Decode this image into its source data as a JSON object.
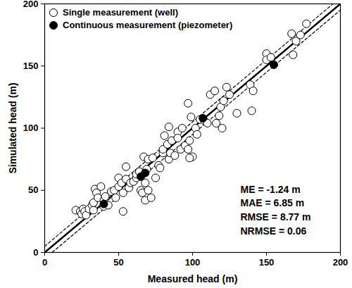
{
  "chart_data": {
    "type": "scatter",
    "xlabel": "Measured head (m)",
    "ylabel": "Simulated head (m)",
    "xlim": [
      0,
      200
    ],
    "ylim": [
      0,
      200
    ],
    "xticks": [
      0,
      50,
      100,
      150,
      200
    ],
    "yticks": [
      0,
      50,
      100,
      150,
      200
    ],
    "grid": false,
    "legend": "top-left",
    "series": [
      {
        "name": "Single measurement (well)",
        "color": "#000000",
        "marker": "open_circle",
        "x": [
          21,
          24,
          25,
          26,
          27,
          28,
          30,
          32,
          33,
          33,
          34,
          35,
          36,
          38,
          40,
          40,
          41,
          43,
          45,
          47,
          48,
          50,
          50,
          52,
          53,
          53,
          55,
          55,
          57,
          58,
          60,
          62,
          62,
          64,
          65,
          66,
          67,
          68,
          68,
          69,
          70,
          70,
          72,
          73,
          75,
          77,
          78,
          80,
          80,
          81,
          83,
          84,
          84,
          85,
          86,
          88,
          90,
          90,
          92,
          93,
          95,
          97,
          98,
          99,
          100,
          102,
          103,
          105,
          108,
          110,
          112,
          115,
          116,
          118,
          119,
          120,
          121,
          123,
          125,
          130,
          139,
          140,
          141,
          150,
          150,
          153,
          167,
          168,
          170,
          173,
          177,
          97,
          98
        ],
        "values": [
          34,
          33,
          31,
          35,
          33,
          30,
          35,
          38,
          34,
          40,
          51,
          48,
          44,
          53,
          42,
          37,
          45,
          38,
          49,
          50,
          44,
          53,
          60,
          56,
          48,
          33,
          59,
          69,
          52,
          56,
          57,
          60,
          63,
          65,
          50,
          48,
          77,
          42,
          56,
          67,
          75,
          50,
          44,
          76,
          60,
          70,
          68,
          80,
          83,
          94,
          87,
          75,
          101,
          80,
          90,
          78,
          97,
          92,
          83,
          100,
          86,
          83,
          90,
          109,
          77,
          100,
          95,
          107,
          106,
          104,
          127,
          130,
          104,
          110,
          117,
          100,
          122,
          133,
          127,
          112,
          135,
          114,
          130,
          160,
          155,
          157,
          176,
          159,
          170,
          175,
          184,
          120,
          76
        ]
      },
      {
        "name": "Continuous measurement (piezometer)",
        "color": "#000000",
        "marker": "filled_circle",
        "x": [
          40,
          65,
          68,
          107,
          155
        ],
        "values": [
          39,
          61,
          64,
          108,
          151
        ]
      }
    ],
    "reference_lines": [
      {
        "slope": 1,
        "intercept": 0,
        "line_style": "solid"
      },
      {
        "slope": 1,
        "intercept": 5,
        "line_style": "dashed"
      },
      {
        "slope": 1,
        "intercept": -5,
        "line_style": "dashed"
      }
    ],
    "annotations": [
      "ME = -1.24 m",
      "MAE = 6.85 m",
      "RMSE = 8.77 m",
      "NRMSE = 0.06"
    ]
  }
}
